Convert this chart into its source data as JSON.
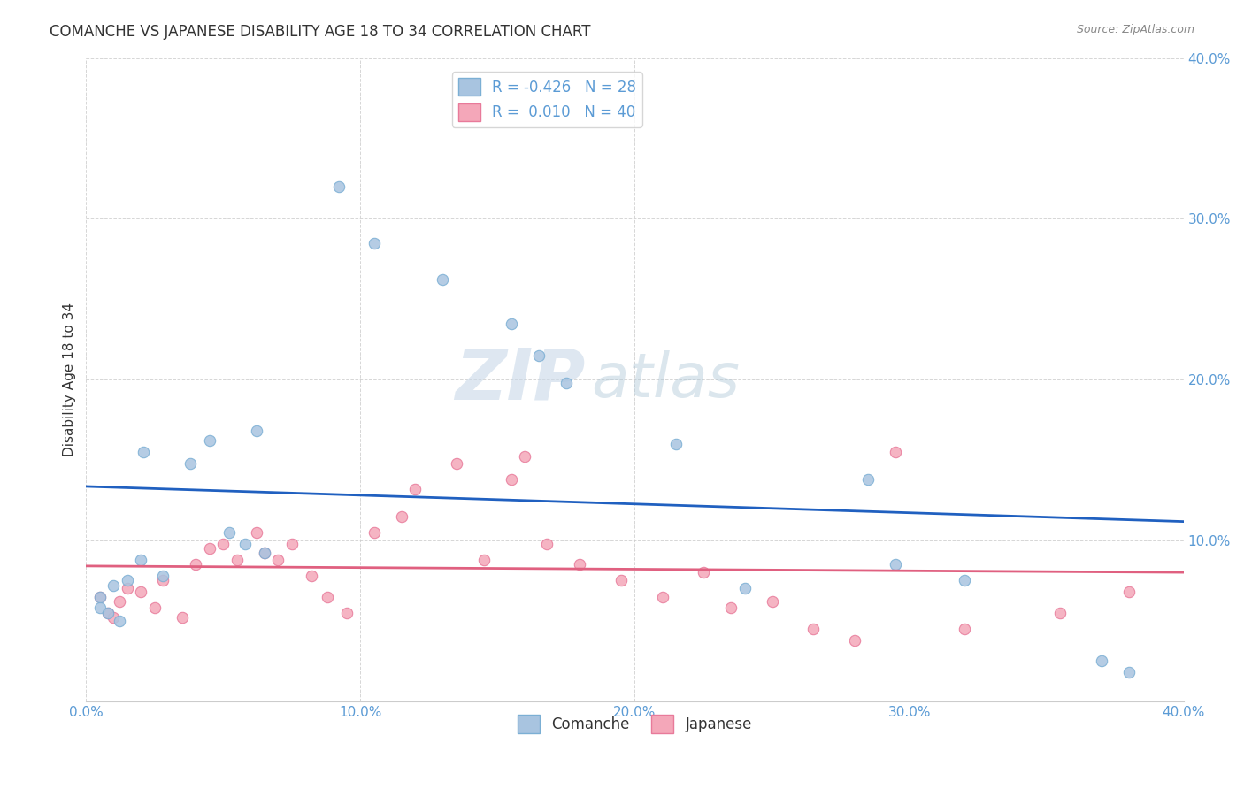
{
  "title": "COMANCHE VS JAPANESE DISABILITY AGE 18 TO 34 CORRELATION CHART",
  "source": "Source: ZipAtlas.com",
  "ylabel": "Disability Age 18 to 34",
  "xlim": [
    0.0,
    0.4
  ],
  "ylim": [
    0.0,
    0.4
  ],
  "xtick_vals": [
    0.0,
    0.1,
    0.2,
    0.3,
    0.4
  ],
  "ytick_vals": [
    0.1,
    0.2,
    0.3,
    0.4
  ],
  "comanche_color": "#a8c4e0",
  "japanese_color": "#f4a7b9",
  "comanche_edge": "#7bafd4",
  "japanese_edge": "#e87a9a",
  "trendline_comanche_color": "#2060c0",
  "trendline_japanese_color": "#e06080",
  "legend_comanche_label": "R = -0.426   N = 28",
  "legend_japanese_label": "R =  0.010   N = 40",
  "comanche_x": [
    0.021,
    0.045,
    0.038,
    0.062,
    0.052,
    0.058,
    0.065,
    0.02,
    0.028,
    0.015,
    0.01,
    0.005,
    0.005,
    0.008,
    0.012,
    0.092,
    0.105,
    0.13,
    0.155,
    0.165,
    0.175,
    0.215,
    0.285,
    0.295,
    0.32,
    0.37,
    0.38,
    0.24
  ],
  "comanche_y": [
    0.155,
    0.162,
    0.148,
    0.168,
    0.105,
    0.098,
    0.092,
    0.088,
    0.078,
    0.075,
    0.072,
    0.065,
    0.058,
    0.055,
    0.05,
    0.32,
    0.285,
    0.262,
    0.235,
    0.215,
    0.198,
    0.16,
    0.138,
    0.085,
    0.075,
    0.025,
    0.018,
    0.07
  ],
  "japanese_x": [
    0.005,
    0.008,
    0.01,
    0.012,
    0.015,
    0.02,
    0.025,
    0.028,
    0.035,
    0.04,
    0.045,
    0.05,
    0.055,
    0.062,
    0.065,
    0.07,
    0.075,
    0.082,
    0.088,
    0.095,
    0.105,
    0.115,
    0.12,
    0.135,
    0.145,
    0.155,
    0.16,
    0.168,
    0.18,
    0.195,
    0.21,
    0.225,
    0.235,
    0.25,
    0.265,
    0.28,
    0.295,
    0.32,
    0.355,
    0.38
  ],
  "japanese_y": [
    0.065,
    0.055,
    0.052,
    0.062,
    0.07,
    0.068,
    0.058,
    0.075,
    0.052,
    0.085,
    0.095,
    0.098,
    0.088,
    0.105,
    0.092,
    0.088,
    0.098,
    0.078,
    0.065,
    0.055,
    0.105,
    0.115,
    0.132,
    0.148,
    0.088,
    0.138,
    0.152,
    0.098,
    0.085,
    0.075,
    0.065,
    0.08,
    0.058,
    0.062,
    0.045,
    0.038,
    0.155,
    0.045,
    0.055,
    0.068
  ],
  "watermark_zip": "ZIP",
  "watermark_atlas": "atlas",
  "marker_size": 80,
  "background_color": "#ffffff",
  "grid_color": "#cccccc"
}
